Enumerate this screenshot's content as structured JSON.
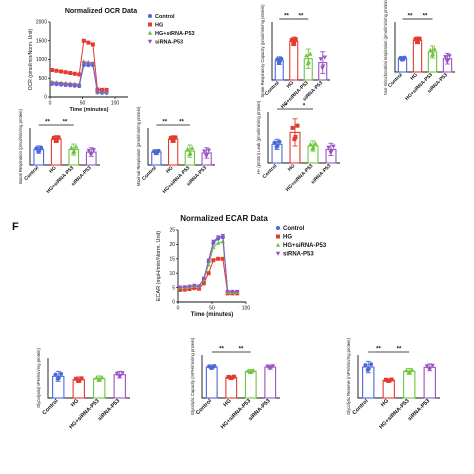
{
  "figure_label": "F",
  "colors": {
    "control": "#4a69d8",
    "hg": "#e23b30",
    "hg_sirna": "#6ec43f",
    "sirna": "#9a52c4"
  },
  "chart_data": [
    {
      "id": "ocr_time",
      "type": "line",
      "title": "Normalized OCR Data",
      "xlabel": "Time (minutes)",
      "ylabel": "OCR (pmol/min/Norm. Unit)",
      "xlim": [
        0,
        120
      ],
      "ylim": [
        0,
        2000
      ],
      "xticks": [
        0,
        50,
        100
      ],
      "yticks": [
        0,
        500,
        1000,
        1500,
        2000
      ],
      "legend_position": "top-right",
      "x": [
        3,
        10,
        17,
        24,
        31,
        38,
        45,
        52,
        59,
        66,
        73,
        80,
        87
      ],
      "series": [
        {
          "name": "Control",
          "color_key": "control",
          "values": [
            350,
            340,
            330,
            320,
            310,
            300,
            290,
            850,
            850,
            850,
            120,
            110,
            110
          ]
        },
        {
          "name": "HG",
          "color_key": "hg",
          "values": [
            720,
            700,
            680,
            660,
            640,
            620,
            600,
            1500,
            1450,
            1400,
            200,
            190,
            190
          ]
        },
        {
          "name": "HG+siRNA-P53",
          "color_key": "hg_sirna",
          "values": [
            400,
            390,
            380,
            370,
            360,
            350,
            340,
            950,
            930,
            910,
            140,
            130,
            130
          ]
        },
        {
          "name": "siRNA-P53",
          "color_key": "sirna",
          "values": [
            370,
            360,
            350,
            340,
            330,
            320,
            310,
            900,
            890,
            880,
            130,
            120,
            120
          ]
        }
      ]
    },
    {
      "id": "spare",
      "type": "bar",
      "ylabel": "Spare Respiratory Capacity (pmol/min/mg protein)",
      "categories": [
        "Control",
        "HG",
        "HG+siRNA-P53",
        "siRNA-P53"
      ],
      "values": [
        500,
        1000,
        550,
        450
      ],
      "errors": [
        100,
        110,
        250,
        280
      ],
      "ylim": [
        0,
        1500
      ],
      "significance": [
        "**",
        "**"
      ]
    },
    {
      "id": "nonmito",
      "type": "bar",
      "ylabel": "Non-mitochondrial respiration (pmol/min/mg protein)",
      "categories": [
        "Control",
        "HG",
        "HG+siRNA-P53",
        "siRNA-P53"
      ],
      "values": [
        40,
        95,
        60,
        40
      ],
      "errors": [
        6,
        10,
        18,
        16
      ],
      "ylim": [
        0,
        150
      ],
      "significance": [
        "**",
        "**"
      ]
    },
    {
      "id": "basal",
      "type": "bar",
      "ylabel": "Basal Respiration (pmol/min/mg protein)",
      "categories": [
        "Control",
        "HG",
        "HG+siRNA-P53",
        "siRNA-P53"
      ],
      "values": [
        250,
        420,
        250,
        210
      ],
      "errors": [
        60,
        55,
        90,
        70
      ],
      "ylim": [
        0,
        600
      ],
      "significance": [
        "**",
        "**"
      ]
    },
    {
      "id": "maximal",
      "type": "bar",
      "ylabel": "Maximal Respiration (pmol/min/mg protein)",
      "categories": [
        "Control",
        "HG",
        "HG+siRNA-P53",
        "siRNA-P53"
      ],
      "values": [
        700,
        1400,
        750,
        650
      ],
      "errors": [
        130,
        180,
        330,
        280
      ],
      "ylim": [
        0,
        2000
      ],
      "significance": [
        "**",
        "**"
      ]
    },
    {
      "id": "leak",
      "type": "bar",
      "ylabel": "H+ (proton) Leak (pmol/min/mg protein)",
      "categories": [
        "Control",
        "HG",
        "HG+siRNA-P53",
        "siRNA-P53"
      ],
      "values": [
        55,
        90,
        50,
        40
      ],
      "errors": [
        15,
        40,
        15,
        18
      ],
      "ylim": [
        0,
        150
      ],
      "significance": [
        "*",
        "*"
      ]
    },
    {
      "id": "ecar_time",
      "type": "line",
      "title": "Normalized ECAR Data",
      "xlabel": "Time (minutes)",
      "ylabel": "ECAR (mpH/min/Norm. Unit)",
      "xlim": [
        0,
        100
      ],
      "ylim": [
        0,
        25
      ],
      "xticks": [
        0,
        50,
        100
      ],
      "yticks": [
        0,
        5,
        10,
        15,
        20,
        25
      ],
      "legend_position": "top-right",
      "x": [
        3,
        10,
        17,
        24,
        31,
        38,
        45,
        52,
        59,
        66,
        73,
        80,
        87
      ],
      "series": [
        {
          "name": "Control",
          "color_key": "control",
          "values": [
            5.0,
            5.0,
            5.2,
            5.5,
            5.3,
            8.0,
            14.0,
            20.5,
            22.0,
            22.5,
            3.5,
            3.5,
            3.5
          ]
        },
        {
          "name": "HG",
          "color_key": "hg",
          "values": [
            4.2,
            4.3,
            4.5,
            4.8,
            4.6,
            6.5,
            10.0,
            14.5,
            15.0,
            15.0,
            3.0,
            3.0,
            3.0
          ]
        },
        {
          "name": "HG+siRNA-P53",
          "color_key": "hg_sirna",
          "values": [
            5.0,
            5.1,
            5.3,
            5.6,
            5.4,
            7.8,
            13.0,
            19.0,
            20.5,
            21.0,
            3.4,
            3.4,
            3.4
          ]
        },
        {
          "name": "siRNA-P53",
          "color_key": "sirna",
          "values": [
            5.1,
            5.2,
            5.4,
            5.7,
            5.5,
            8.2,
            14.5,
            21.0,
            22.5,
            23.0,
            3.6,
            3.6,
            3.6
          ]
        }
      ]
    },
    {
      "id": "glycolysis",
      "type": "bar",
      "ylabel": "Glycolysis(mPH/min/mg protein)",
      "categories": [
        "Control",
        "HG",
        "HG+siRNA-P53",
        "siRNA-P53"
      ],
      "values": [
        6.5,
        5.5,
        5.8,
        7.0
      ],
      "errors": [
        1.5,
        0.8,
        0.8,
        1.0
      ],
      "ylim": [
        0,
        12
      ],
      "significance": []
    },
    {
      "id": "glyco_capacity",
      "type": "bar",
      "ylabel": "Glycolytic Capacity (mPH/min/mg protein)",
      "categories": [
        "Control",
        "HG",
        "HG+siRNA-P53",
        "siRNA-P53"
      ],
      "values": [
        18,
        12,
        15.5,
        18
      ],
      "errors": [
        1.2,
        0.8,
        1.0,
        1.2
      ],
      "ylim": [
        0,
        25
      ],
      "significance": [
        "**",
        "**"
      ]
    },
    {
      "id": "glyco_reserve",
      "type": "bar",
      "ylabel": "Glycolytic Reserve (mPH/min/mg protein)",
      "categories": [
        "Control",
        "HG",
        "HG+siRNA-P53",
        "siRNA-P53"
      ],
      "values": [
        10.8,
        6.2,
        9.3,
        10.7
      ],
      "errors": [
        2.0,
        0.5,
        1.0,
        1.2
      ],
      "ylim": [
        0,
        15
      ],
      "significance": [
        "**",
        "**"
      ]
    }
  ]
}
